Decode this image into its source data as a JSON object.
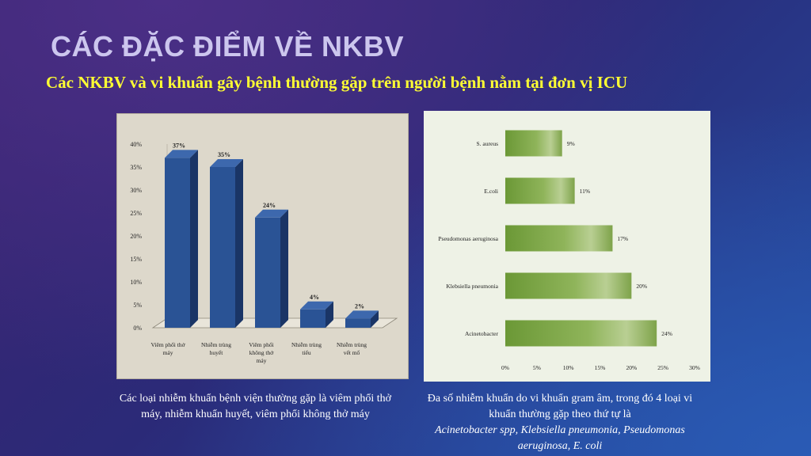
{
  "slide": {
    "title": "CÁC ĐẶC ĐIỂM VỀ NKBV",
    "subtitle": "Các NKBV và vi khuẩn gây bệnh thường gặp trên người bệnh nằm tại đơn vị ICU",
    "caption_left": "Các loại nhiễm khuẩn bệnh viện thường gặp là viêm phổi thở máy, nhiễm khuẩn huyết, viêm phổi không thở máy",
    "caption_right_plain": "Đa số nhiễm khuẩn do vi khuẩn gram âm, trong đó 4 loại vi khuẩn thường gặp theo thứ tự là",
    "caption_right_italic": "Acinetobacter spp, Klebsiella pneumonia, Pseudomonas aeruginosa, E. coli"
  },
  "chart_data": [
    {
      "type": "bar",
      "categories": [
        [
          "Viêm phổi thở",
          "máy"
        ],
        [
          "Nhiễm trùng",
          "huyết"
        ],
        [
          "Viêm phổi",
          "không thở",
          "máy"
        ],
        [
          "Nhiễm trùng",
          "tiểu"
        ],
        [
          "Nhiễm trùng",
          "vết mổ"
        ]
      ],
      "values": [
        37,
        35,
        24,
        4,
        2
      ],
      "data_labels": [
        "37%",
        "35%",
        "24%",
        "4%",
        "2%"
      ],
      "yticks": [
        "0%",
        "5%",
        "10%",
        "15%",
        "20%",
        "25%",
        "30%",
        "35%",
        "40%"
      ],
      "ylim": [
        0,
        40
      ],
      "bar_color": "#2a5395",
      "grid": false
    },
    {
      "type": "bar",
      "orientation": "horizontal",
      "categories": [
        "S. aureus",
        "E.coli",
        "Pseudomonas aeruginosa",
        "Klebsiella pneumonia",
        "Acinetobacter"
      ],
      "values": [
        9,
        11,
        17,
        20,
        24
      ],
      "data_labels": [
        "9%",
        "11%",
        "17%",
        "20%",
        "24%"
      ],
      "xticks": [
        "0%",
        "5%",
        "10%",
        "15%",
        "20%",
        "25%",
        "30%"
      ],
      "xlim": [
        0,
        30
      ],
      "bar_color": "#6e9a3a",
      "grid": false
    }
  ]
}
